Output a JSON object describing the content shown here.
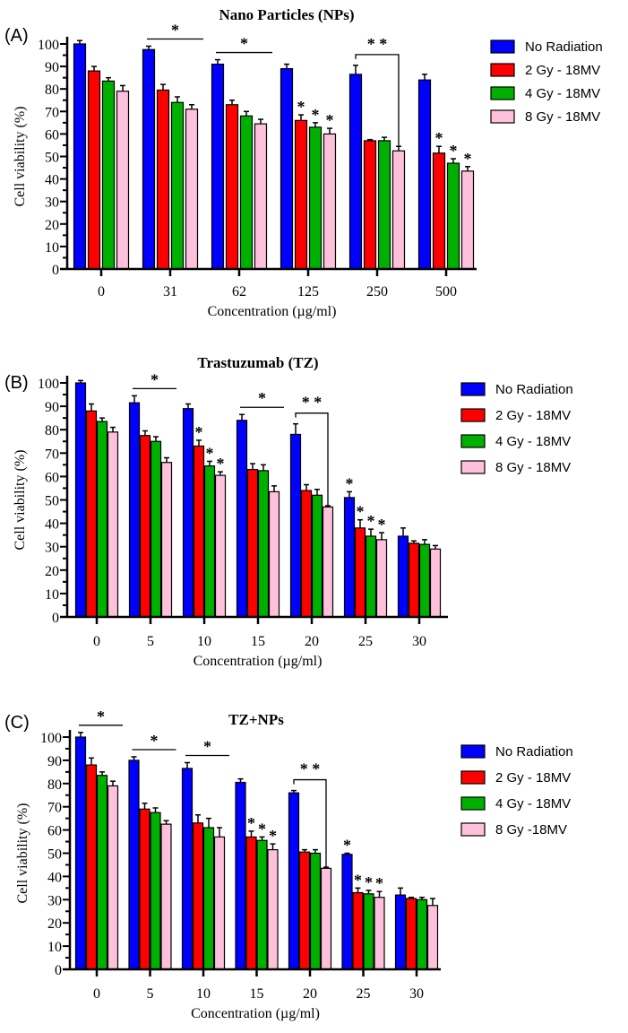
{
  "colors": {
    "No Radiation": "#0000ff",
    "2 Gy - 18MV": "#ff0000",
    "4 Gy - 18MV": "#00b000",
    "8 Gy - 18MV": "#ffc0dc",
    "bar_outline": "#000000"
  },
  "chart_data": [
    {
      "panel_label": "(A)",
      "type": "bar",
      "title": "Nano Particles (NPs)",
      "xlabel": "Concentration (µg/ml)",
      "ylabel": "Cell viability (%)",
      "ylim": [
        0,
        100
      ],
      "yticks": [
        0,
        10,
        20,
        30,
        40,
        50,
        60,
        70,
        80,
        90,
        100
      ],
      "categories": [
        "0",
        "31",
        "62",
        "125",
        "250",
        "500"
      ],
      "legend_position": "right",
      "series": [
        {
          "name": "No Radiation",
          "values": [
            100,
            97.5,
            91,
            89,
            86.5,
            84
          ],
          "errors": [
            1.5,
            1.5,
            2,
            2,
            4,
            2.5
          ]
        },
        {
          "name": "2 Gy - 18MV",
          "values": [
            88,
            79.5,
            73,
            66,
            57,
            51.5
          ],
          "errors": [
            2,
            2.5,
            2,
            2.5,
            0.5,
            3
          ]
        },
        {
          "name": "4 Gy - 18MV",
          "values": [
            83.5,
            74,
            68,
            63,
            57,
            47
          ],
          "errors": [
            1.5,
            2.5,
            2,
            2,
            1.5,
            2
          ]
        },
        {
          "name": "8 Gy - 18MV",
          "values": [
            79,
            71,
            64.5,
            60,
            52.5,
            43.5
          ],
          "errors": [
            2.5,
            2,
            2,
            2.5,
            2,
            2
          ]
        }
      ],
      "annotations": [
        {
          "type": "line",
          "group": 1,
          "text": "*"
        },
        {
          "type": "line",
          "group": 2,
          "text": "*"
        },
        {
          "type": "bracket",
          "group": 4,
          "to_bar": 3,
          "text": "* *"
        },
        {
          "type": "star",
          "group": 3,
          "bar": 1,
          "text": "*"
        },
        {
          "type": "star",
          "group": 3,
          "bar": 2,
          "text": "*"
        },
        {
          "type": "star",
          "group": 3,
          "bar": 3,
          "text": "*"
        },
        {
          "type": "star",
          "group": 5,
          "bar": 1,
          "text": "*"
        },
        {
          "type": "star",
          "group": 5,
          "bar": 2,
          "text": "*"
        },
        {
          "type": "star",
          "group": 5,
          "bar": 3,
          "text": "*"
        }
      ]
    },
    {
      "panel_label": "(B)",
      "type": "bar",
      "title": "Trastuzumab (TZ)",
      "xlabel": "Concentration (µg/ml)",
      "ylabel": "Cell viability (%)",
      "ylim": [
        0,
        100
      ],
      "yticks": [
        0,
        10,
        20,
        30,
        40,
        50,
        60,
        70,
        80,
        90,
        100
      ],
      "categories": [
        "0",
        "5",
        "10",
        "15",
        "20",
        "25",
        "30"
      ],
      "legend_position": "right",
      "series": [
        {
          "name": "No Radiation",
          "values": [
            100,
            91.5,
            89,
            84,
            78,
            51,
            34.5
          ],
          "errors": [
            1,
            3,
            2,
            2.5,
            4.5,
            2.5,
            3.5
          ]
        },
        {
          "name": "2 Gy - 18MV",
          "values": [
            88,
            77.5,
            73,
            63,
            54,
            38,
            31.5
          ],
          "errors": [
            3,
            2,
            2.5,
            2.5,
            2.5,
            3.5,
            1
          ]
        },
        {
          "name": "4 Gy - 18MV",
          "values": [
            83.5,
            75,
            64.5,
            62.5,
            52,
            34.5,
            31
          ],
          "errors": [
            1.5,
            2,
            2,
            2.5,
            2.5,
            3,
            2
          ]
        },
        {
          "name": "8 Gy - 18MV",
          "values": [
            79,
            66,
            60.5,
            53.5,
            47,
            33,
            29
          ],
          "errors": [
            2,
            2,
            1.5,
            2.5,
            0.5,
            3,
            1.5
          ]
        }
      ],
      "annotations": [
        {
          "type": "line",
          "group": 1,
          "text": "*"
        },
        {
          "type": "line",
          "group": 3,
          "text": "*"
        },
        {
          "type": "bracket",
          "group": 4,
          "to_bar": 3,
          "text": "* *"
        },
        {
          "type": "star",
          "group": 2,
          "bar": 1,
          "text": "*"
        },
        {
          "type": "star",
          "group": 2,
          "bar": 2,
          "text": "*"
        },
        {
          "type": "star",
          "group": 2,
          "bar": 3,
          "text": "*"
        },
        {
          "type": "star",
          "group": 5,
          "bar": 0,
          "text": "*"
        },
        {
          "type": "star",
          "group": 5,
          "bar": 1,
          "text": "*"
        },
        {
          "type": "star",
          "group": 5,
          "bar": 2,
          "text": "*"
        },
        {
          "type": "star",
          "group": 5,
          "bar": 3,
          "text": "*"
        }
      ]
    },
    {
      "panel_label": "(C)",
      "type": "bar",
      "title": "TZ+NPs",
      "xlabel": "Concentration (µg/ml)",
      "ylabel": "Cell viability (%)",
      "ylim": [
        0,
        100
      ],
      "yticks": [
        0,
        10,
        20,
        30,
        40,
        50,
        60,
        70,
        80,
        90,
        100
      ],
      "categories": [
        "0",
        "5",
        "10",
        "15",
        "20",
        "25",
        "30"
      ],
      "legend_position": "right",
      "series": [
        {
          "name": "No Radiation",
          "values": [
            100,
            90,
            86.5,
            80.5,
            76,
            49.5,
            32
          ],
          "errors": [
            2,
            1.5,
            2.5,
            1.5,
            1,
            0.5,
            3
          ]
        },
        {
          "name": "2 Gy - 18MV",
          "values": [
            88,
            69,
            63,
            57,
            50.5,
            33,
            30.5
          ],
          "errors": [
            3,
            2.5,
            3.5,
            2.5,
            1,
            2,
            0.5
          ]
        },
        {
          "name": "4 Gy - 18MV",
          "values": [
            83.5,
            67.5,
            61,
            55.5,
            50,
            32.5,
            30
          ],
          "errors": [
            1.5,
            2,
            4,
            1.5,
            1.5,
            1.5,
            1
          ]
        },
        {
          "name": "8 Gy -18MV",
          "values": [
            79,
            62.5,
            57,
            51.5,
            43.5,
            31,
            27.5
          ],
          "errors": [
            2,
            1.5,
            4,
            2.5,
            0.5,
            2.5,
            3
          ]
        }
      ],
      "annotations": [
        {
          "type": "line",
          "group": 0,
          "text": "*"
        },
        {
          "type": "line",
          "group": 1,
          "text": "*"
        },
        {
          "type": "line",
          "group": 2,
          "text": "*"
        },
        {
          "type": "bracket",
          "group": 4,
          "to_bar": 3,
          "text": "* *"
        },
        {
          "type": "star",
          "group": 3,
          "bar": 1,
          "text": "*"
        },
        {
          "type": "star",
          "group": 3,
          "bar": 2,
          "text": "*"
        },
        {
          "type": "star",
          "group": 3,
          "bar": 3,
          "text": "*"
        },
        {
          "type": "star",
          "group": 5,
          "bar": 0,
          "text": "*"
        },
        {
          "type": "star",
          "group": 5,
          "bar": 1,
          "text": "*"
        },
        {
          "type": "star",
          "group": 5,
          "bar": 2,
          "text": "*"
        },
        {
          "type": "star",
          "group": 5,
          "bar": 3,
          "text": "*"
        }
      ]
    }
  ]
}
